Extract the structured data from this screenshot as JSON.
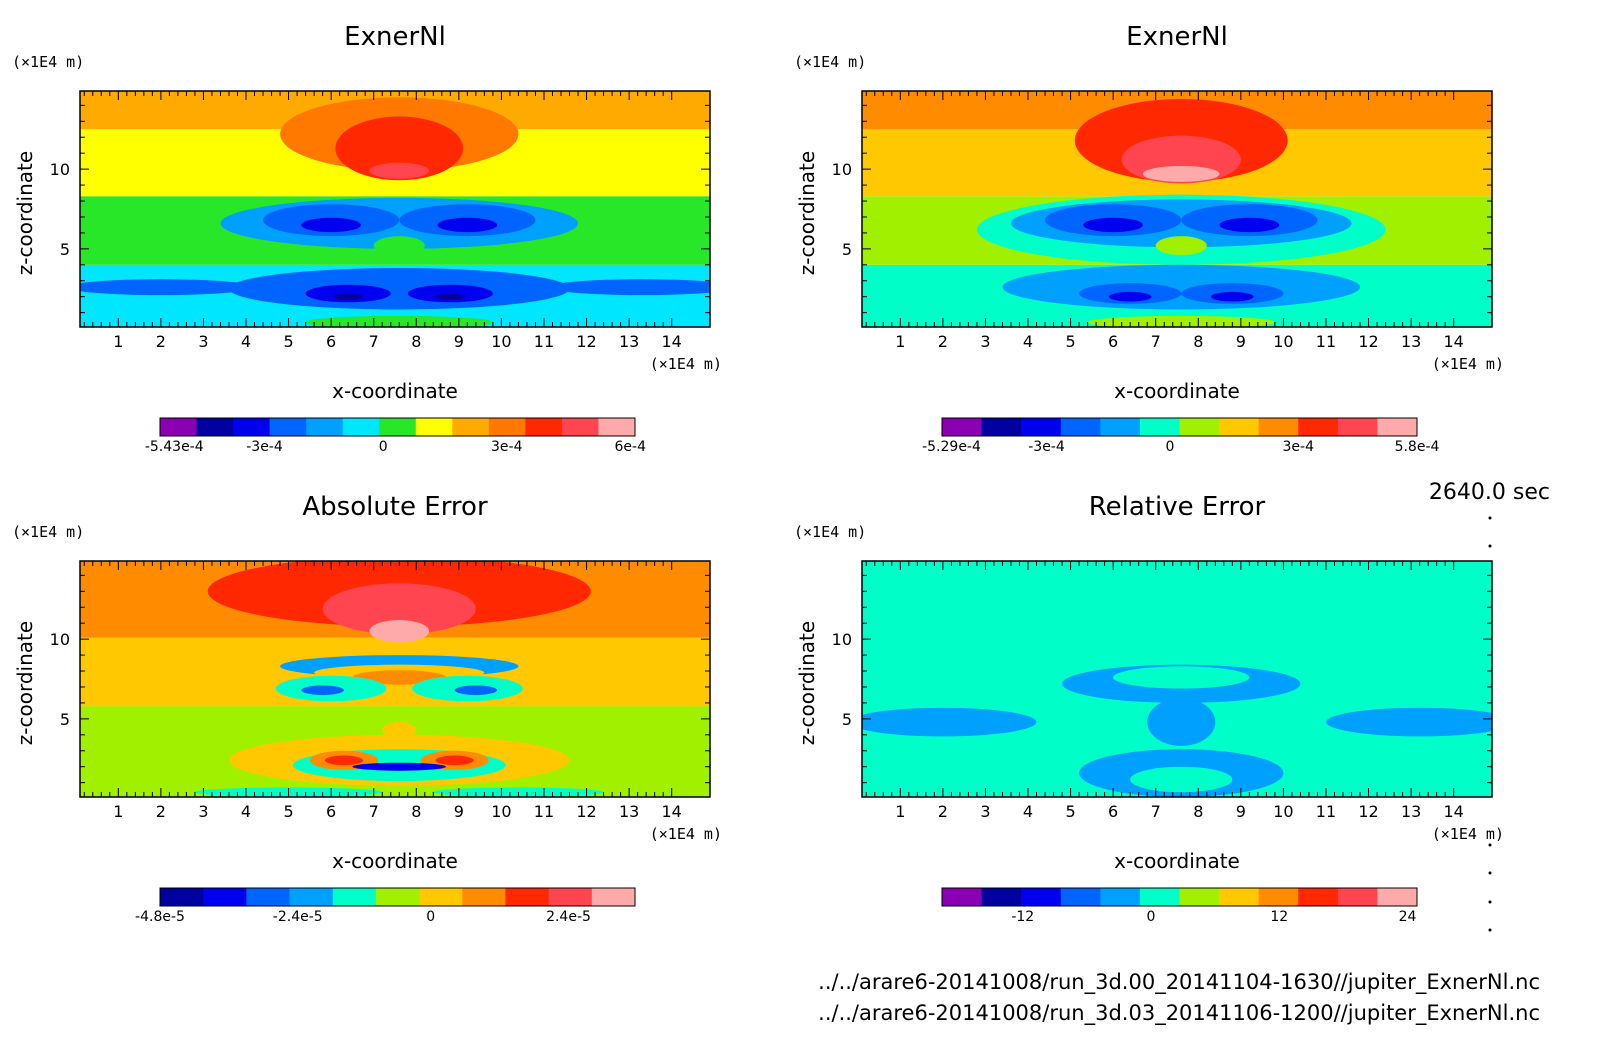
{
  "time_label": "2640.0 sec",
  "footer": {
    "file1": "../../arare6-20141008/run_3d.00_20141104-1630//jupiter_ExnerNl.nc",
    "file2": "../../arare6-20141008/run_3d.03_20141106-1200//jupiter_ExnerNl.nc"
  },
  "chart_data": [
    {
      "type": "heatmap",
      "title": "ExnerNl",
      "xlabel": "x-coordinate",
      "ylabel": "z-coordinate",
      "x_unit": "(×1E4 m)",
      "z_unit": "(×1E4 m)",
      "xlim": [
        0.1,
        14.9
      ],
      "ylim": [
        0.1,
        14.9
      ],
      "x_ticks": [
        "1",
        "2",
        "3",
        "4",
        "5",
        "6",
        "7",
        "8",
        "9",
        "10",
        "11",
        "12",
        "13",
        "14"
      ],
      "z_ticks": [
        "5",
        "10"
      ],
      "colorbar": {
        "colors": [
          "#8c00b4",
          "#0000a0",
          "#0000f0",
          "#0064ff",
          "#00a0ff",
          "#00e6ff",
          "#28e628",
          "#ffff00",
          "#ffaa00",
          "#ff7800",
          "#ff2800",
          "#ff4650",
          "#ffaaaa"
        ],
        "labels": [
          "-5.43e-4",
          "-3e-4",
          "0",
          "3e-4",
          "6e-4"
        ]
      },
      "regions": [
        {
          "color": "#00e6ff",
          "z": [
            0.1,
            4.0
          ]
        },
        {
          "color": "#28e628",
          "z": [
            4.0,
            8.3
          ]
        },
        {
          "color": "#ffff00",
          "z": [
            8.3,
            12.5
          ]
        },
        {
          "color": "#ffaa00",
          "z": [
            12.5,
            14.9
          ]
        }
      ]
    },
    {
      "type": "heatmap",
      "title": "ExnerNl",
      "xlabel": "x-coordinate",
      "ylabel": "z-coordinate",
      "x_unit": "(×1E4 m)",
      "z_unit": "(×1E4 m)",
      "xlim": [
        0.1,
        14.9
      ],
      "ylim": [
        0.1,
        14.9
      ],
      "x_ticks": [
        "1",
        "2",
        "3",
        "4",
        "5",
        "6",
        "7",
        "8",
        "9",
        "10",
        "11",
        "12",
        "13",
        "14"
      ],
      "z_ticks": [
        "5",
        "10"
      ],
      "colorbar": {
        "colors": [
          "#8c00b4",
          "#0000a0",
          "#0000f0",
          "#0064ff",
          "#00a0ff",
          "#00ffc8",
          "#a0f000",
          "#ffc800",
          "#ff8c00",
          "#ff2800",
          "#ff4650",
          "#ffaaaa"
        ],
        "labels": [
          "-5.29e-4",
          "-3e-4",
          "0",
          "3e-4",
          "5.8e-4"
        ]
      },
      "regions": [
        {
          "color": "#00ffc8",
          "z": [
            0.1,
            4.0
          ]
        },
        {
          "color": "#a0f000",
          "z": [
            4.0,
            8.3
          ]
        },
        {
          "color": "#ffc800",
          "z": [
            8.3,
            12.5
          ]
        },
        {
          "color": "#ff8c00",
          "z": [
            12.5,
            14.9
          ]
        }
      ]
    },
    {
      "type": "heatmap",
      "title": "Absolute Error",
      "xlabel": "x-coordinate",
      "ylabel": "z-coordinate",
      "x_unit": "(×1E4 m)",
      "z_unit": "(×1E4 m)",
      "xlim": [
        0.1,
        14.9
      ],
      "ylim": [
        0.1,
        14.9
      ],
      "x_ticks": [
        "1",
        "2",
        "3",
        "4",
        "5",
        "6",
        "7",
        "8",
        "9",
        "10",
        "11",
        "12",
        "13",
        "14"
      ],
      "z_ticks": [
        "5",
        "10"
      ],
      "colorbar": {
        "colors": [
          "#0000a0",
          "#0000f0",
          "#0064ff",
          "#00a0ff",
          "#00ffc8",
          "#a0f000",
          "#ffc800",
          "#ff8c00",
          "#ff2800",
          "#ff4650",
          "#ffaaaa"
        ],
        "labels": [
          "-4.8e-5",
          "-2.4e-5",
          "0",
          "2.4e-5"
        ]
      },
      "regions": [
        {
          "color": "#a0f000",
          "z": [
            0.1,
            5.8
          ]
        },
        {
          "color": "#ffc800",
          "z": [
            5.8,
            10.1
          ]
        },
        {
          "color": "#ff8c00",
          "z": [
            10.1,
            14.9
          ]
        }
      ]
    },
    {
      "type": "heatmap",
      "title": "Relative Error",
      "xlabel": "x-coordinate",
      "ylabel": "z-coordinate",
      "x_unit": "(×1E4 m)",
      "z_unit": "(×1E4 m)",
      "xlim": [
        0.1,
        14.9
      ],
      "ylim": [
        0.1,
        14.9
      ],
      "x_ticks": [
        "1",
        "2",
        "3",
        "4",
        "5",
        "6",
        "7",
        "8",
        "9",
        "10",
        "11",
        "12",
        "13",
        "14"
      ],
      "z_ticks": [
        "5",
        "10"
      ],
      "colorbar": {
        "colors": [
          "#8c00b4",
          "#0000a0",
          "#0000f0",
          "#0064ff",
          "#00a0ff",
          "#00ffc8",
          "#a0f000",
          "#ffc800",
          "#ff8c00",
          "#ff2800",
          "#ff4650",
          "#ffaaaa"
        ],
        "labels": [
          "-12",
          "0",
          "12",
          "24"
        ]
      },
      "regions": [
        {
          "color": "#00ffc8",
          "z": [
            0.1,
            14.9
          ]
        }
      ]
    }
  ]
}
